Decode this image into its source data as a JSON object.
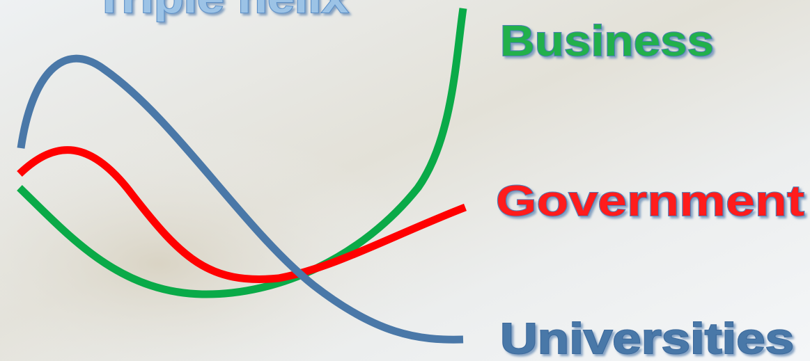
{
  "title": "Triple helix",
  "labels": {
    "business": "Business",
    "government": "Government",
    "universities": "Universities"
  }
}
